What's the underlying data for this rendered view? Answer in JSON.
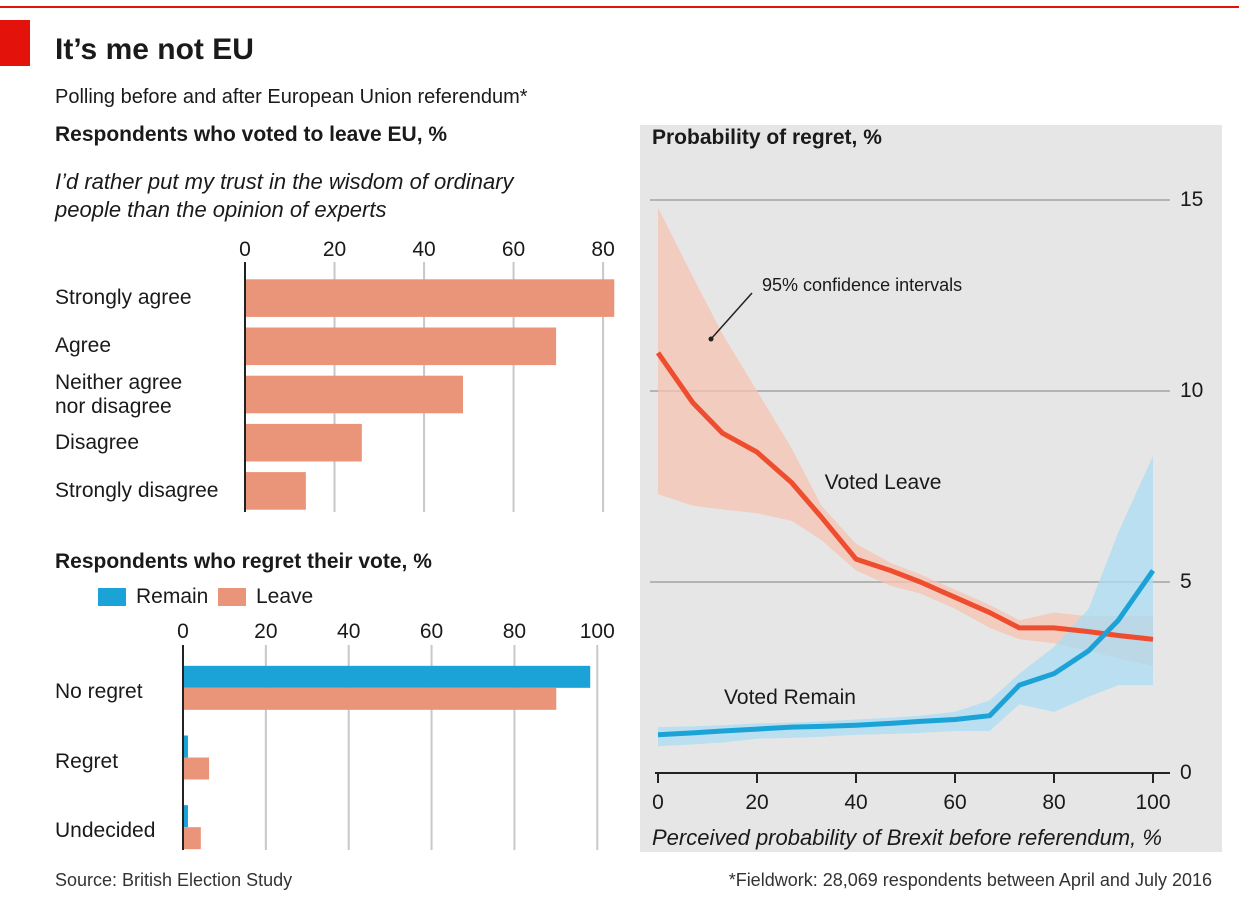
{
  "header": {
    "title": "It’s me not EU",
    "subtitle": "Polling before and after European Union referendum*"
  },
  "chart_data": [
    {
      "type": "hbar",
      "title": "Respondents who voted to leave EU, %",
      "subtitle": "I’d rather put my trust in the wisdom of ordinary\npeople than the opinion of experts",
      "categories": [
        "Strongly agree",
        "Agree",
        "Neither agree\nnor disagree",
        "Disagree",
        "Strongly disagree"
      ],
      "values": [
        82.5,
        69.5,
        48.7,
        26.1,
        13.6
      ],
      "color": "#ea9479",
      "xlim": [
        0,
        84
      ],
      "xticks": [
        0,
        20,
        40,
        60,
        80
      ],
      "grid": true
    },
    {
      "type": "grouped-hbar",
      "title": "Respondents who regret their vote, %",
      "categories": [
        "No regret",
        "Regret",
        "Undecided"
      ],
      "series": [
        {
          "name": "Remain",
          "color": "#1ba3d8",
          "values": [
            98.3,
            1.2,
            1.2
          ]
        },
        {
          "name": "Leave",
          "color": "#ea9479",
          "values": [
            90.1,
            6.3,
            4.3
          ]
        }
      ],
      "xlim": [
        0,
        105
      ],
      "xticks": [
        0,
        20,
        40,
        60,
        80,
        100
      ],
      "grid": true,
      "legend": "top-left"
    },
    {
      "type": "line",
      "title": "Probability of regret, %",
      "xlabel": "Perceived probability of Brexit before referendum, %",
      "annotation": "95% confidence intervals",
      "x": [
        0,
        7,
        13,
        20,
        27,
        33,
        40,
        47,
        53,
        60,
        67,
        73,
        80,
        87,
        93,
        100
      ],
      "series": [
        {
          "name": "Voted Leave",
          "color": "#ee4d2f",
          "band_color": "#f5c3b1",
          "values": [
            11.0,
            9.7,
            8.9,
            8.4,
            7.6,
            6.7,
            5.6,
            5.3,
            5.0,
            4.6,
            4.2,
            3.8,
            3.8,
            3.7,
            3.6,
            3.5
          ],
          "upper": [
            14.8,
            13.0,
            11.5,
            10.0,
            8.5,
            7.0,
            6.0,
            5.5,
            5.2,
            4.8,
            4.4,
            4.0,
            4.2,
            4.1,
            4.1,
            4.1
          ],
          "lower": [
            7.3,
            7.0,
            6.9,
            6.8,
            6.6,
            6.1,
            5.3,
            4.9,
            4.7,
            4.3,
            3.8,
            3.5,
            3.4,
            3.2,
            3.0,
            2.8
          ]
        },
        {
          "name": "Voted Remain",
          "color": "#1ba3d8",
          "band_color": "#a9dcf3",
          "values": [
            1.0,
            1.05,
            1.1,
            1.15,
            1.2,
            1.22,
            1.25,
            1.3,
            1.35,
            1.4,
            1.5,
            2.3,
            2.6,
            3.2,
            4.0,
            5.3
          ],
          "upper": [
            1.2,
            1.22,
            1.25,
            1.3,
            1.32,
            1.35,
            1.4,
            1.45,
            1.5,
            1.6,
            1.9,
            2.6,
            3.3,
            4.3,
            6.3,
            8.3
          ],
          "lower": [
            0.7,
            0.75,
            0.8,
            0.9,
            0.92,
            0.95,
            1.0,
            1.02,
            1.05,
            1.1,
            1.1,
            1.8,
            1.6,
            2.0,
            2.3,
            2.3
          ]
        }
      ],
      "xlim": [
        0,
        100
      ],
      "xticks": [
        0,
        20,
        40,
        60,
        80,
        100
      ],
      "ylim": [
        0,
        15
      ],
      "yticks": [
        0,
        5,
        10,
        15
      ],
      "grid": true
    }
  ],
  "footer": {
    "source": "Source: British Election Study",
    "note": "*Fieldwork: 28,069 respondents between April and July 2016"
  }
}
